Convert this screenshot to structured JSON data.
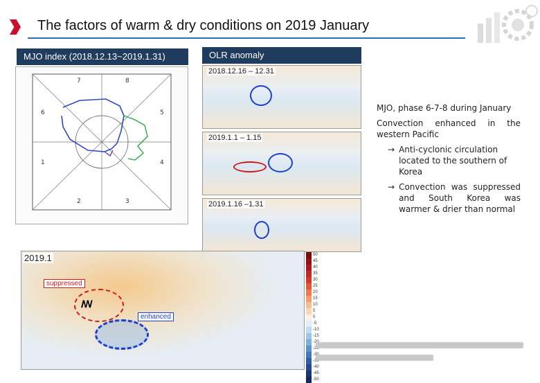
{
  "title": "The factors of warm & dry conditions on 2019 January",
  "mjo_panel": {
    "header": "MJO index (2018.12.13~2019.1.31)"
  },
  "olr_panel": {
    "header": "OLR anomaly",
    "maps": [
      {
        "date": "2018.12.16 – 12.31"
      },
      {
        "date": "2019.1.1 – 1.15"
      },
      {
        "date": "2019.1.16 –1.31"
      }
    ]
  },
  "explanation": {
    "heading": "MJO, phase 6-7-8 during January",
    "line1": "Convection enhanced in the western Pacific",
    "bullet1": "Anti-cyclonic circulation located to the southern of Korea",
    "bullet2": "Convection was suppressed and South Korea was warmer & drier than normal"
  },
  "bottom_map": {
    "date": "2019.1",
    "suppressed_label": "suppressed",
    "enhanced_label": "enhanced",
    "colorbar_ticks": [
      "50",
      "45",
      "40",
      "35",
      "30",
      "25",
      "20",
      "15",
      "10",
      "5",
      "0",
      "-5",
      "-10",
      "-15",
      "-20",
      "-25",
      "-30",
      "-35",
      "-40",
      "-45",
      "-50"
    ]
  },
  "colors": {
    "header_bg": "#1f3b5e",
    "title_accent": "#c8102e",
    "enhanced_ellipse": "#1a3fd1",
    "suppressed_ellipse": "#d11a1a"
  }
}
